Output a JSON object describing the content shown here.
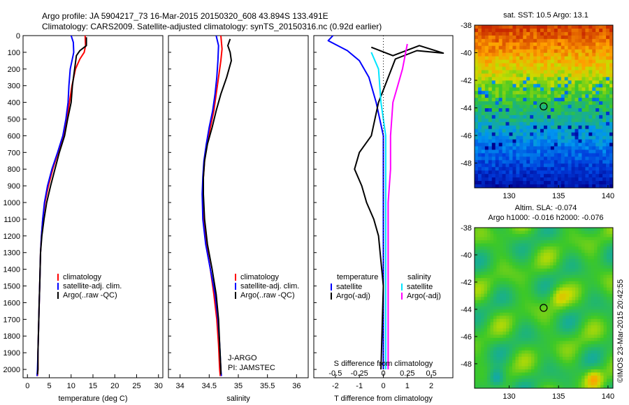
{
  "header": {
    "title_line1": "Argo profile: JA 5904217_73 16-Mar-2015 20150320_608 43.894S 133.491E",
    "title_line2": "Climatology: CARS2009. Satellite-adjusted climatology: synTS_20150316.nc (0.92d earlier)"
  },
  "colors": {
    "climatology": "#ff0000",
    "satellite": "#0000ff",
    "argo": "#000000",
    "cyan": "#00e5ff",
    "magenta": "#ff00ff"
  },
  "chart_data": [
    {
      "type": "line",
      "id": "temperature",
      "xlabel": "temperature (deg C)",
      "ylabel": "",
      "xlim": [
        -1,
        31
      ],
      "ylim": [
        2050,
        0
      ],
      "xticks": [
        0,
        5,
        10,
        15,
        20,
        25,
        30
      ],
      "yticks": [
        0,
        100,
        200,
        300,
        400,
        500,
        600,
        700,
        800,
        900,
        1000,
        1100,
        1200,
        1300,
        1400,
        1500,
        1600,
        1700,
        1800,
        1900,
        2000
      ],
      "legend": [
        "climatology",
        "satellite-adj. clim.",
        "Argo(..raw -QC)"
      ],
      "series": [
        {
          "name": "climatology",
          "color": "#ff0000",
          "points": [
            [
              13.2,
              0
            ],
            [
              13.3,
              60
            ],
            [
              13.0,
              100
            ],
            [
              12.0,
              140
            ],
            [
              11.0,
              200
            ],
            [
              10.2,
              300
            ],
            [
              9.6,
              400
            ],
            [
              9.0,
              500
            ],
            [
              8.2,
              600
            ],
            [
              7.0,
              700
            ],
            [
              5.8,
              800
            ],
            [
              4.8,
              900
            ],
            [
              4.0,
              1000
            ],
            [
              3.5,
              1100
            ],
            [
              3.2,
              1200
            ],
            [
              3.0,
              1300
            ],
            [
              2.9,
              1400
            ],
            [
              2.8,
              1500
            ],
            [
              2.7,
              1600
            ],
            [
              2.6,
              1700
            ],
            [
              2.5,
              1800
            ],
            [
              2.4,
              1900
            ],
            [
              2.4,
              2000
            ],
            [
              2.3,
              2040
            ]
          ]
        },
        {
          "name": "satellite-adj. clim.",
          "color": "#0000ff",
          "points": [
            [
              10.0,
              0
            ],
            [
              10.5,
              40
            ],
            [
              10.6,
              100
            ],
            [
              10.2,
              150
            ],
            [
              9.8,
              200
            ],
            [
              9.5,
              300
            ],
            [
              9.3,
              400
            ],
            [
              8.8,
              500
            ],
            [
              8.1,
              600
            ],
            [
              6.9,
              700
            ],
            [
              5.6,
              800
            ],
            [
              4.6,
              900
            ],
            [
              3.9,
              1000
            ],
            [
              3.5,
              1100
            ],
            [
              3.2,
              1200
            ],
            [
              3.0,
              1300
            ],
            [
              2.9,
              1400
            ],
            [
              2.8,
              1500
            ],
            [
              2.7,
              1600
            ],
            [
              2.6,
              1700
            ],
            [
              2.5,
              1800
            ],
            [
              2.4,
              1900
            ],
            [
              2.3,
              2000
            ],
            [
              2.2,
              2040
            ]
          ]
        },
        {
          "name": "Argo(..raw -QC)",
          "color": "#000000",
          "points": [
            [
              13.5,
              10
            ],
            [
              13.5,
              60
            ],
            [
              12.0,
              90
            ],
            [
              11.2,
              120
            ],
            [
              10.8,
              200
            ],
            [
              10.3,
              300
            ],
            [
              10.0,
              400
            ],
            [
              9.2,
              500
            ],
            [
              8.5,
              600
            ],
            [
              7.3,
              700
            ],
            [
              6.3,
              800
            ],
            [
              5.3,
              900
            ],
            [
              4.4,
              1000
            ],
            [
              3.8,
              1100
            ],
            [
              3.3,
              1200
            ],
            [
              3.0,
              1300
            ],
            [
              2.9,
              1400
            ],
            [
              2.8,
              1500
            ],
            [
              2.7,
              1600
            ],
            [
              2.6,
              1700
            ],
            [
              2.5,
              1800
            ],
            [
              2.4,
              1900
            ],
            [
              2.4,
              2000
            ],
            [
              2.3,
              2030
            ]
          ]
        }
      ]
    },
    {
      "type": "line",
      "id": "salinity",
      "xlabel": "salinity",
      "xlim": [
        33.8,
        36.2
      ],
      "ylim": [
        2050,
        0
      ],
      "xticks": [
        34,
        34.5,
        35,
        35.5,
        36
      ],
      "legend": [
        "climatology",
        "satellite-adj. clim.",
        "Argo(..raw -QC)"
      ],
      "annotations": [
        "J-ARGO",
        "PI: JAMSTEC"
      ],
      "series": [
        {
          "name": "climatology",
          "color": "#ff0000",
          "points": [
            [
              34.7,
              0
            ],
            [
              34.72,
              80
            ],
            [
              34.7,
              150
            ],
            [
              34.66,
              250
            ],
            [
              34.62,
              350
            ],
            [
              34.58,
              450
            ],
            [
              34.52,
              550
            ],
            [
              34.46,
              650
            ],
            [
              34.42,
              750
            ],
            [
              34.4,
              850
            ],
            [
              34.39,
              950
            ],
            [
              34.4,
              1100
            ],
            [
              34.45,
              1250
            ],
            [
              34.52,
              1400
            ],
            [
              34.58,
              1550
            ],
            [
              34.63,
              1700
            ],
            [
              34.66,
              1850
            ],
            [
              34.68,
              2000
            ],
            [
              34.69,
              2040
            ]
          ]
        },
        {
          "name": "satellite-adj. clim.",
          "color": "#0000ff",
          "points": [
            [
              34.62,
              0
            ],
            [
              34.66,
              60
            ],
            [
              34.65,
              150
            ],
            [
              34.63,
              250
            ],
            [
              34.6,
              350
            ],
            [
              34.56,
              450
            ],
            [
              34.5,
              550
            ],
            [
              34.45,
              650
            ],
            [
              34.41,
              750
            ],
            [
              34.39,
              850
            ],
            [
              34.38,
              950
            ],
            [
              34.39,
              1100
            ],
            [
              34.44,
              1250
            ],
            [
              34.52,
              1400
            ],
            [
              34.6,
              1550
            ],
            [
              34.65,
              1700
            ],
            [
              34.68,
              1850
            ],
            [
              34.7,
              2000
            ],
            [
              34.71,
              2040
            ]
          ]
        },
        {
          "name": "Argo(..raw -QC)",
          "color": "#000000",
          "points": [
            [
              34.86,
              20
            ],
            [
              34.82,
              60
            ],
            [
              34.86,
              100
            ],
            [
              34.88,
              150
            ],
            [
              34.8,
              250
            ],
            [
              34.7,
              350
            ],
            [
              34.62,
              450
            ],
            [
              34.55,
              550
            ],
            [
              34.47,
              650
            ],
            [
              34.42,
              750
            ],
            [
              34.4,
              850
            ],
            [
              34.4,
              950
            ],
            [
              34.42,
              1100
            ],
            [
              34.47,
              1250
            ],
            [
              34.55,
              1400
            ],
            [
              34.62,
              1550
            ],
            [
              34.66,
              1700
            ],
            [
              34.68,
              1850
            ],
            [
              34.7,
              2000
            ],
            [
              34.7,
              2030
            ]
          ]
        }
      ]
    },
    {
      "type": "line",
      "id": "difference",
      "xlabel": "T difference from climatology",
      "top_axis_label": "S difference from climatology",
      "xlim": [
        -2.9,
        2.9
      ],
      "ylim": [
        2050,
        0
      ],
      "xticks": [
        -2,
        -1,
        0,
        1,
        2
      ],
      "top_xticks": [
        "-0.5",
        "-0.25",
        "0",
        "0.25",
        "0.5"
      ],
      "legend_left_title": "temperature",
      "legend_right_title": "salinity",
      "legend_left": [
        "satellite",
        "Argo(-adj)"
      ],
      "legend_right": [
        "satellite",
        "Argo(-adj)"
      ],
      "series": [
        {
          "name": "temperature satellite",
          "color": "#0000ff",
          "points": [
            [
              -2.1,
              0
            ],
            [
              -2.3,
              30
            ],
            [
              -1.5,
              90
            ],
            [
              -1.0,
              150
            ],
            [
              -0.6,
              250
            ],
            [
              -0.3,
              400
            ],
            [
              0.0,
              600
            ],
            [
              0.0,
              800
            ],
            [
              0.0,
              1000
            ],
            [
              0.0,
              1500
            ],
            [
              0.0,
              2000
            ]
          ]
        },
        {
          "name": "temperature Argo(-adj)",
          "color": "#000000",
          "points": [
            [
              -0.5,
              70
            ],
            [
              0.4,
              120
            ],
            [
              1.5,
              60
            ],
            [
              2.5,
              105
            ],
            [
              1.4,
              90
            ],
            [
              0.5,
              140
            ],
            [
              -0.2,
              400
            ],
            [
              -0.5,
              600
            ],
            [
              -1.0,
              700
            ],
            [
              -1.2,
              800
            ],
            [
              -0.9,
              900
            ],
            [
              -0.7,
              1000
            ],
            [
              -0.4,
              1100
            ],
            [
              -0.2,
              1200
            ],
            [
              0.0,
              1500
            ],
            [
              -0.1,
              2000
            ]
          ]
        },
        {
          "name": "salinity satellite",
          "color": "#00e5ff",
          "points": [
            [
              -0.5,
              100
            ],
            [
              -0.2,
              200
            ],
            [
              -0.1,
              400
            ],
            [
              0.1,
              600
            ],
            [
              0.1,
              1000
            ],
            [
              0.1,
              1500
            ],
            [
              0.1,
              2000
            ]
          ]
        },
        {
          "name": "salinity Argo(-adj)",
          "color": "#ff00ff",
          "points": [
            [
              1.0,
              50
            ],
            [
              0.8,
              200
            ],
            [
              0.6,
              300
            ],
            [
              0.4,
              400
            ],
            [
              0.3,
              600
            ],
            [
              0.3,
              800
            ],
            [
              0.2,
              1000
            ],
            [
              0.2,
              1500
            ],
            [
              0.2,
              2000
            ]
          ]
        }
      ]
    },
    {
      "type": "heatmap",
      "id": "sst_map",
      "title": "sat. SST: 10.5  Argo: 13.1",
      "xlim": [
        126.5,
        140.5
      ],
      "ylim": [
        -49.8,
        -38
      ],
      "xticks": [
        130,
        135,
        140
      ],
      "yticks": [
        -38,
        -40,
        -42,
        -44,
        -46,
        -48
      ],
      "marker": {
        "lon": 133.491,
        "lat": -43.894
      }
    },
    {
      "type": "heatmap",
      "id": "sla_map",
      "title": "Altim. SLA: -0.074",
      "subtitle": "Argo h1000: -0.016  h2000: -0.076",
      "xlim": [
        126.5,
        140.5
      ],
      "ylim": [
        -49.8,
        -38
      ],
      "xticks": [
        130,
        135,
        140
      ],
      "yticks": [
        -38,
        -40,
        -42,
        -44,
        -46,
        -48
      ],
      "marker": {
        "lon": 133.491,
        "lat": -43.894
      }
    }
  ],
  "credit": "©IMOS 23-Mar-2015 20:42:55"
}
